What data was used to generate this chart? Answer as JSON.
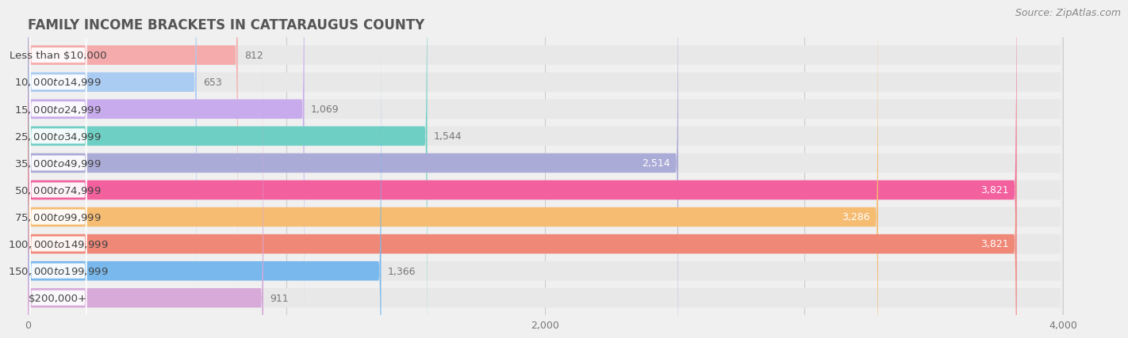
{
  "title": "FAMILY INCOME BRACKETS IN CATTARAUGUS COUNTY",
  "source": "Source: ZipAtlas.com",
  "categories": [
    "Less than $10,000",
    "$10,000 to $14,999",
    "$15,000 to $24,999",
    "$25,000 to $34,999",
    "$35,000 to $49,999",
    "$50,000 to $74,999",
    "$75,000 to $99,999",
    "$100,000 to $149,999",
    "$150,000 to $199,999",
    "$200,000+"
  ],
  "values": [
    812,
    653,
    1069,
    1544,
    2514,
    3821,
    3286,
    3821,
    1366,
    911
  ],
  "bar_colors": [
    "#F5ABAB",
    "#AACBF2",
    "#C8ABEC",
    "#6ECFC4",
    "#ABABD8",
    "#F2609E",
    "#F5BC72",
    "#F08878",
    "#78B8EC",
    "#D8AADA"
  ],
  "background_color": "#f0f0f0",
  "bar_bg_color": "#e8e8e8",
  "label_pill_color": "#ffffff",
  "xlim_max": 4000,
  "title_fontsize": 12,
  "label_fontsize": 9.5,
  "value_fontsize": 9,
  "source_fontsize": 9,
  "value_threshold": 2000,
  "grid_color": "#cccccc",
  "title_color": "#555555",
  "label_color": "#444444",
  "value_color_inside": "#ffffff",
  "value_color_outside": "#777777"
}
